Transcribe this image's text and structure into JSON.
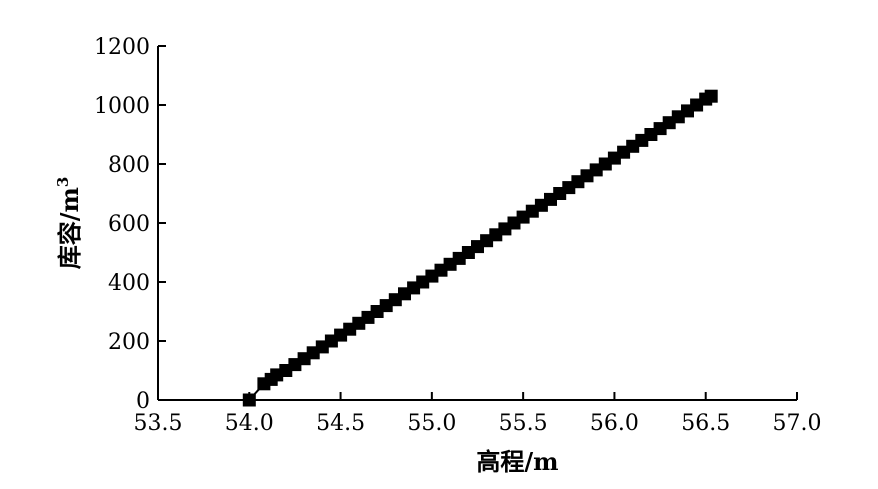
{
  "chart_data": {
    "type": "line",
    "title": "",
    "xlabel": "高程/m",
    "ylabel_main": "库容/m",
    "ylabel_sup": "3",
    "xlim": [
      53.5,
      57.0
    ],
    "ylim": [
      0,
      1200
    ],
    "xticks": [
      53.5,
      54.0,
      54.5,
      55.0,
      55.5,
      56.0,
      56.5,
      57.0
    ],
    "xtick_labels": [
      "53.5",
      "54.0",
      "54.5",
      "55.0",
      "55.5",
      "56.0",
      "56.5",
      "57.0"
    ],
    "yticks": [
      0,
      200,
      400,
      600,
      800,
      1000,
      1200
    ],
    "ytick_labels": [
      "0",
      "200",
      "400",
      "600",
      "800",
      "1000",
      "1200"
    ],
    "grid": false,
    "legend": "none",
    "marker": "square",
    "color": "#000000",
    "series": [
      {
        "x": [
          54.0,
          54.08,
          54.12,
          54.15,
          54.2,
          54.25,
          54.3,
          54.35,
          54.4,
          54.45,
          54.5,
          54.55,
          54.6,
          54.65,
          54.7,
          54.75,
          54.8,
          54.85,
          54.9,
          54.95,
          55.0,
          55.05,
          55.1,
          55.15,
          55.2,
          55.25,
          55.3,
          55.35,
          55.4,
          55.45,
          55.5,
          55.55,
          55.6,
          55.65,
          55.7,
          55.75,
          55.8,
          55.85,
          55.9,
          55.95,
          56.0,
          56.05,
          56.1,
          56.15,
          56.2,
          56.25,
          56.3,
          56.35,
          56.4,
          56.45,
          56.5,
          56.53
        ],
        "y": [
          0,
          55,
          70,
          85,
          100,
          120,
          140,
          160,
          180,
          200,
          220,
          240,
          260,
          280,
          300,
          320,
          340,
          360,
          380,
          400,
          420,
          440,
          460,
          480,
          500,
          520,
          540,
          560,
          580,
          600,
          620,
          640,
          660,
          680,
          700,
          720,
          740,
          760,
          780,
          800,
          820,
          840,
          860,
          880,
          900,
          920,
          940,
          960,
          980,
          1000,
          1020,
          1030
        ]
      }
    ]
  }
}
